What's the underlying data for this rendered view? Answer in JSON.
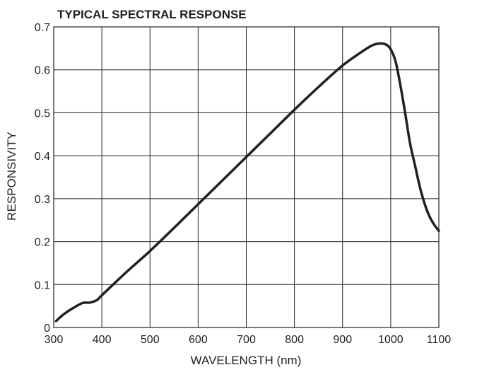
{
  "chart_data": {
    "type": "line",
    "title": "TYPICAL SPECTRAL RESPONSE",
    "xlabel": "WAVELENGTH (nm)",
    "ylabel": "RESPONSIVITY",
    "xlim": [
      300,
      1100
    ],
    "ylim": [
      0,
      0.7
    ],
    "x_ticks": [
      300,
      400,
      500,
      600,
      700,
      800,
      900,
      1000,
      1100
    ],
    "x_tick_labels": [
      "300",
      "400",
      "500",
      "600",
      "700",
      "800",
      "900",
      "1000",
      "1100"
    ],
    "y_ticks": [
      0,
      0.1,
      0.2,
      0.3,
      0.4,
      0.5,
      0.6,
      0.7
    ],
    "y_tick_labels": [
      "0",
      "0.1",
      "0.2",
      "0.3",
      "0.4",
      "0.5",
      "0.6",
      "0.7"
    ],
    "grid": true,
    "legend": "none",
    "colors": {
      "line": "#231f20",
      "grid": "#231f20",
      "text": "#231f20"
    },
    "series": [
      {
        "x": [
          305,
          320,
          340,
          360,
          375,
          390,
          400,
          450,
          500,
          550,
          600,
          650,
          700,
          750,
          800,
          850,
          900,
          940,
          960,
          975,
          990,
          1000,
          1010,
          1020,
          1030,
          1040,
          1050,
          1060,
          1070,
          1080,
          1090,
          1100
        ],
        "y": [
          0.015,
          0.03,
          0.045,
          0.057,
          0.058,
          0.064,
          0.075,
          0.128,
          0.178,
          0.232,
          0.287,
          0.342,
          0.397,
          0.452,
          0.507,
          0.56,
          0.61,
          0.642,
          0.656,
          0.661,
          0.659,
          0.648,
          0.62,
          0.565,
          0.5,
          0.43,
          0.38,
          0.33,
          0.29,
          0.26,
          0.24,
          0.225
        ]
      }
    ]
  }
}
